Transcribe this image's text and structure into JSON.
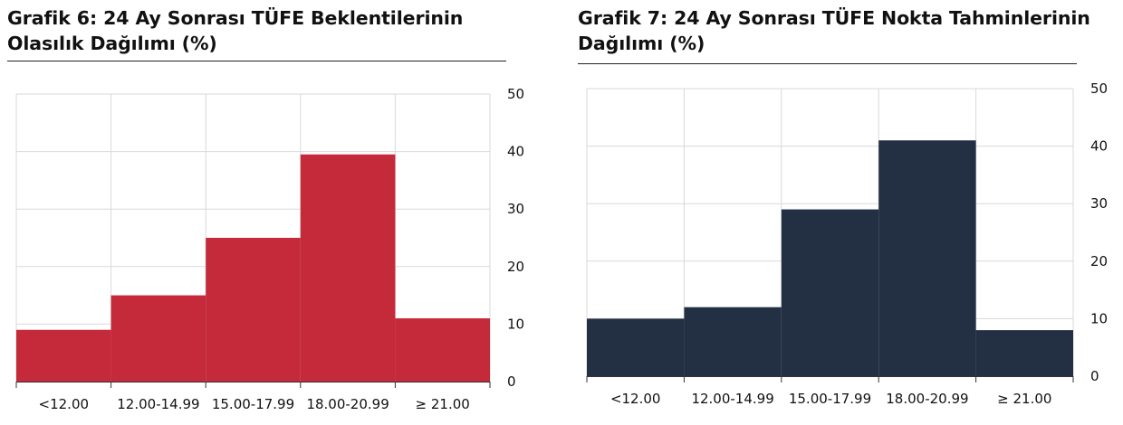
{
  "chart_data": [
    {
      "type": "bar",
      "title_line1": "Grafik 6: 24 Ay Sonrası TÜFE Beklentilerinin",
      "title_line2": "Olasılık Dağılımı (%)",
      "categories": [
        "<12.00",
        "12.00-14.99",
        "15.00-17.99",
        "18.00-20.99",
        "≥ 21.00"
      ],
      "values": [
        9,
        15,
        25,
        39.5,
        11
      ],
      "ylim": [
        0,
        50
      ],
      "yticks": [
        0,
        10,
        20,
        30,
        40,
        50
      ],
      "y_axis_side": "right",
      "grid": true,
      "bar_color": "#c52a3a"
    },
    {
      "type": "bar",
      "title_line1": "Grafik 7: 24 Ay Sonrası TÜFE Nokta Tahminlerinin",
      "title_line2": "Dağılımı (%)",
      "categories": [
        "<12.00",
        "12.00-14.99",
        "15.00-17.99",
        "18.00-20.99",
        "≥ 21.00"
      ],
      "values": [
        10,
        12,
        29,
        41,
        8
      ],
      "ylim": [
        0,
        50
      ],
      "yticks": [
        0,
        10,
        20,
        30,
        40,
        50
      ],
      "y_axis_side": "right",
      "grid": true,
      "bar_color": "#233044"
    }
  ]
}
